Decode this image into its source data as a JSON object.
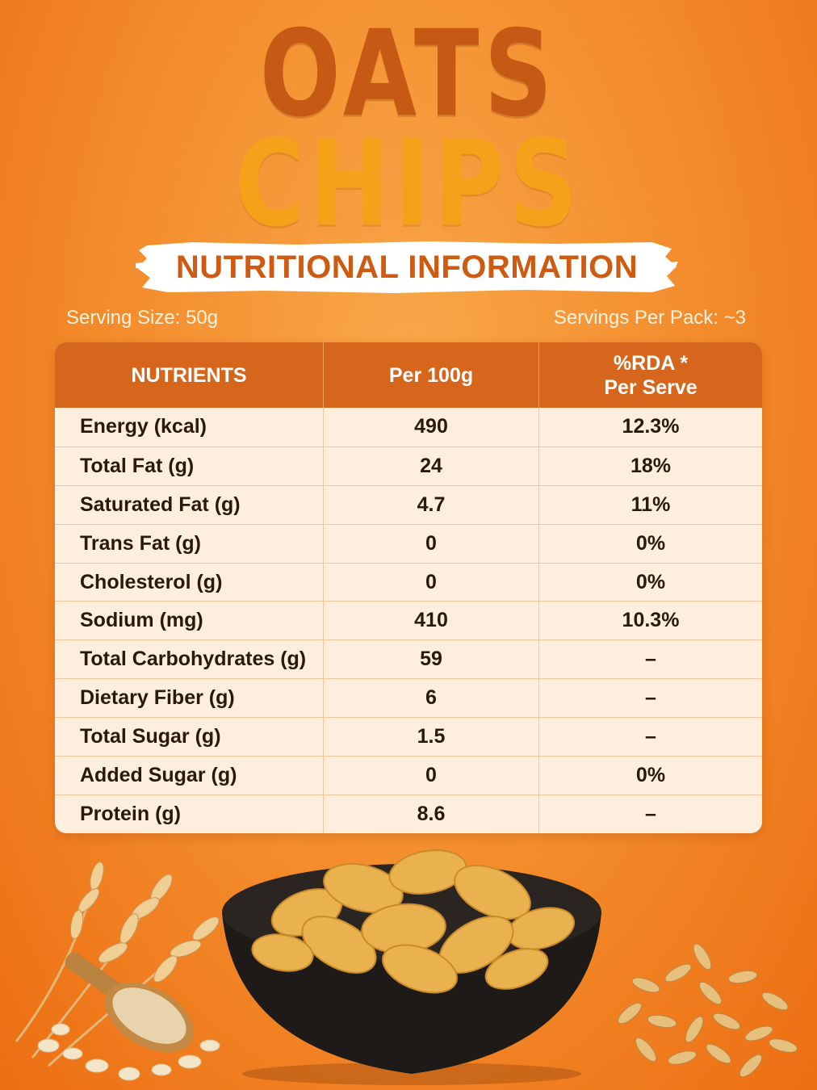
{
  "title": {
    "line1": "OATS",
    "line2": "CHIPS"
  },
  "banner": {
    "text": "NUTRITIONAL INFORMATION"
  },
  "serving": {
    "size": "Serving Size: 50g",
    "per_pack": "Servings Per Pack: ~3"
  },
  "table": {
    "headers": {
      "nutrients": "NUTRIENTS",
      "per100": "Per 100g",
      "rda_line1": "%RDA *",
      "rda_line2": "Per Serve"
    },
    "rows": [
      {
        "name": "Energy (kcal)",
        "per100": "490",
        "rda": "12.3%"
      },
      {
        "name": "Total Fat (g)",
        "per100": "24",
        "rda": "18%"
      },
      {
        "name": "Saturated Fat (g)",
        "per100": "4.7",
        "rda": "11%"
      },
      {
        "name": "Trans Fat (g)",
        "per100": "0",
        "rda": "0%"
      },
      {
        "name": "Cholesterol (g)",
        "per100": "0",
        "rda": "0%"
      },
      {
        "name": "Sodium (mg)",
        "per100": "410",
        "rda": "10.3%"
      },
      {
        "name": "Total Carbohydrates (g)",
        "per100": "59",
        "rda": "–"
      },
      {
        "name": "Dietary Fiber (g)",
        "per100": "6",
        "rda": "–"
      },
      {
        "name": "Total Sugar (g)",
        "per100": "1.5",
        "rda": "–"
      },
      {
        "name": "Added Sugar (g)",
        "per100": "0",
        "rda": "0%"
      },
      {
        "name": "Protein (g)",
        "per100": "8.6",
        "rda": "–"
      }
    ]
  },
  "colors": {
    "title_dark": "#c65a14",
    "title_light": "#f6a11a",
    "header_bg": "#d6661c",
    "table_bg": "#fdeedd"
  },
  "illustration": {
    "icons": [
      "chips-bowl-icon",
      "oat-stalks-icon",
      "oat-flakes-scoop-icon",
      "oat-grains-icon"
    ]
  }
}
